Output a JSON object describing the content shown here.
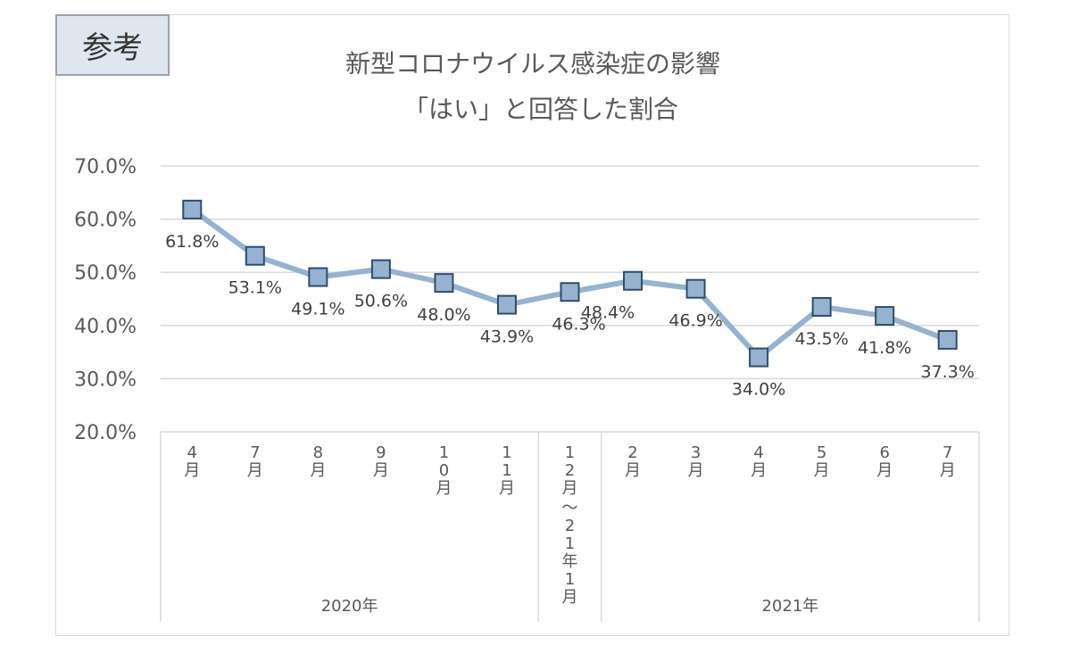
{
  "badge": "参考",
  "chart_data": {
    "type": "line",
    "title": "新型コロナウイルス感染症の影響",
    "subtitle": "「はい」と回答した割合",
    "categories": [
      "4月",
      "7月",
      "8月",
      "9月",
      "10月",
      "11月",
      "12月～21年1月",
      "2月",
      "3月",
      "4月",
      "5月",
      "6月",
      "7月"
    ],
    "groups": [
      {
        "label": "2020年",
        "span": [
          0,
          5
        ]
      },
      {
        "label": "2021年",
        "span": [
          7,
          12
        ]
      }
    ],
    "values": [
      61.8,
      53.1,
      49.1,
      50.6,
      48.0,
      43.9,
      46.3,
      48.4,
      46.9,
      34.0,
      43.5,
      41.8,
      37.3
    ],
    "value_labels": [
      "61.8%",
      "53.1%",
      "49.1%",
      "50.6%",
      "48.0%",
      "43.9%",
      "46.3%",
      "48.4%",
      "46.9%",
      "34.0%",
      "43.5%",
      "41.8%",
      "37.3%"
    ],
    "yticks": [
      "70.0%",
      "60.0%",
      "50.0%",
      "40.0%",
      "30.0%",
      "20.0%"
    ],
    "ylim": [
      20,
      70
    ],
    "grid": true,
    "legend": "none",
    "colors": {
      "line": "#95b3d0",
      "marker_fill": "#95b3d0",
      "marker_edge": "#2e4d6b",
      "grid": "#d9d9d9"
    }
  }
}
